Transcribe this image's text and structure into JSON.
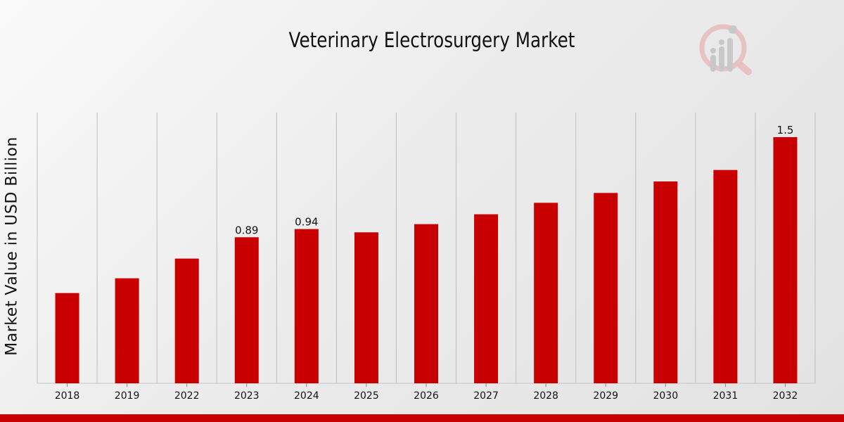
{
  "chart_data": {
    "type": "bar",
    "title": "Veterinary Electrosurgery Market",
    "xlabel": "",
    "ylabel": "Market Value in USD Billion",
    "categories": [
      "2018",
      "2019",
      "2022",
      "2023",
      "2024",
      "2025",
      "2026",
      "2027",
      "2028",
      "2029",
      "2030",
      "2031",
      "2032"
    ],
    "values": [
      0.55,
      0.64,
      0.76,
      0.89,
      0.94,
      0.92,
      0.97,
      1.03,
      1.1,
      1.16,
      1.23,
      1.3,
      1.5
    ],
    "labels": {
      "2023": "0.89",
      "2024": "0.94",
      "2032": "1.5"
    },
    "ylim": [
      0,
      1.5
    ],
    "bar_color": "#c80000",
    "grid": "vertical"
  },
  "colors": {
    "accent": "#c80000"
  }
}
